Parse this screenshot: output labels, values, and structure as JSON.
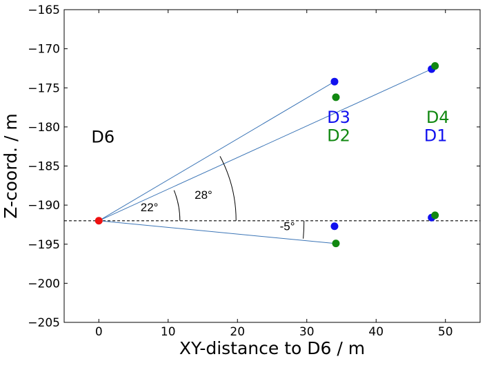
{
  "chart_data": {
    "type": "scatter",
    "xlabel": "XY-distance to D6 / m",
    "ylabel": "Z-coord. / m",
    "xlim": [
      -5,
      55
    ],
    "ylim": [
      -205,
      -165
    ],
    "xticks": [
      0,
      10,
      20,
      30,
      40,
      50
    ],
    "yticks": [
      -165,
      -170,
      -175,
      -180,
      -185,
      -190,
      -195,
      -200,
      -205
    ],
    "xtick_labels": [
      "0",
      "10",
      "20",
      "30",
      "40",
      "50"
    ],
    "ytick_labels": [
      "−165",
      "−170",
      "−175",
      "−180",
      "−185",
      "−190",
      "−195",
      "−200",
      "−205"
    ],
    "reference_line": {
      "y": -192,
      "style": "dashed"
    },
    "series": [
      {
        "name": "origin",
        "color": "#ee1111",
        "points": [
          {
            "x": 0,
            "y": -192
          }
        ]
      },
      {
        "name": "blue",
        "color": "#1111ee",
        "points": [
          {
            "x": 34,
            "y": -174.2
          },
          {
            "x": 48,
            "y": -172.6
          },
          {
            "x": 34,
            "y": -192.7
          },
          {
            "x": 48,
            "y": -191.6
          }
        ]
      },
      {
        "name": "green",
        "color": "#118811",
        "points": [
          {
            "x": 34.2,
            "y": -176.2
          },
          {
            "x": 48.5,
            "y": -172.2
          },
          {
            "x": 34.2,
            "y": -194.9
          },
          {
            "x": 48.5,
            "y": -191.3
          }
        ]
      }
    ],
    "rays": [
      {
        "from": [
          0,
          -192
        ],
        "to": [
          34,
          -174.2
        ]
      },
      {
        "from": [
          0,
          -192
        ],
        "to": [
          48,
          -172.6
        ]
      },
      {
        "from": [
          0,
          -192
        ],
        "to": [
          34,
          -194.9
        ]
      }
    ],
    "angle_annotations": [
      {
        "label": "22°",
        "radius_x": 11.7,
        "from_deg": 0,
        "to_deg": 22,
        "text_at": [
          7.3,
          -190.8
        ]
      },
      {
        "label": "28°",
        "radius_x": 19.8,
        "from_deg": 0,
        "to_deg": 28,
        "text_at": [
          15.1,
          -189.2
        ]
      },
      {
        "label": "-5°",
        "radius_x": 29.6,
        "from_deg": -5,
        "to_deg": 0,
        "text_at": [
          27.2,
          -193.2
        ]
      }
    ],
    "text_annotations": [
      {
        "text": "D6",
        "x": 0.6,
        "y": -182,
        "color": "#000000"
      },
      {
        "text": "D3",
        "x": 34.6,
        "y": -179.5,
        "color": "#1111ee"
      },
      {
        "text": "D2",
        "x": 34.6,
        "y": -181.8,
        "color": "#118811"
      },
      {
        "text": "D4",
        "x": 48.9,
        "y": -179.5,
        "color": "#118811"
      },
      {
        "text": "D1",
        "x": 48.6,
        "y": -181.8,
        "color": "#1111ee"
      }
    ],
    "line_color": "#3a74b6"
  }
}
